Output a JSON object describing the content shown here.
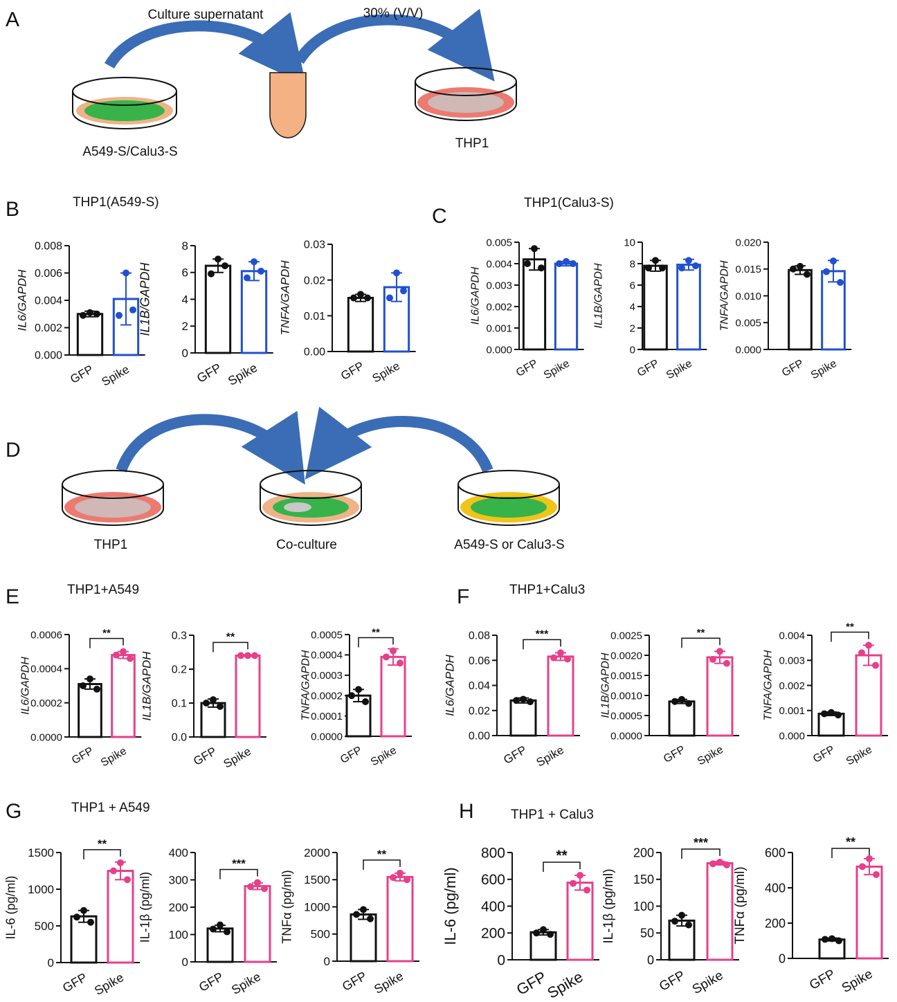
{
  "diagram_a": {
    "label": "A",
    "labels": [
      "Culture supernatant",
      "30% (V/V)",
      "A549-S/Calu3-S",
      "THP1"
    ]
  },
  "diagram_d": {
    "label": "D",
    "labels": [
      "THP1",
      "Co-culture",
      "A549-S or Calu3-S"
    ]
  },
  "panels": [
    {
      "label": "B",
      "title": "THP1(A549-S)"
    },
    {
      "label": "C",
      "title": "THP1(Calu3-S)"
    },
    {
      "label": "E",
      "title": "THP1+A549"
    },
    {
      "label": "F",
      "title": "THP1+Calu3"
    },
    {
      "label": "G",
      "title": "THP1 + A549"
    },
    {
      "label": "H",
      "title": "THP1 + Calu3"
    }
  ],
  "chart_data": [
    {
      "type": "bar",
      "ylabel": "IL6/GAPDH",
      "ylabel_style": "italic",
      "categories": [
        "GFP",
        "Spike"
      ],
      "colors": [
        "#111111",
        "#2050d0"
      ],
      "values": [
        0.003,
        0.0041
      ],
      "errors": [
        0.0002,
        0.0019
      ],
      "points": [
        [
          0.0029,
          0.0031,
          0.003
        ],
        [
          0.0029,
          0.006,
          0.0033
        ]
      ],
      "ylim": [
        0,
        0.008
      ],
      "yticks": [
        {
          "value": 0,
          "label": "0.000"
        },
        0.002,
        0.004,
        0.006,
        0.008
      ]
    },
    {
      "type": "bar",
      "ylabel": "IL1B/GAPDH",
      "ylabel_style": "italic",
      "categories": [
        "GFP",
        "Spike"
      ],
      "colors": [
        "#111111",
        "#2050d0"
      ],
      "values": [
        6.5,
        6.1
      ],
      "errors": [
        0.5,
        0.7
      ],
      "points": [
        [
          5.9,
          7.0,
          6.5
        ],
        [
          5.6,
          6.8,
          6.1
        ]
      ],
      "ylim": [
        0,
        8
      ],
      "yticks": [
        0,
        2,
        4,
        6,
        8
      ]
    },
    {
      "type": "bar",
      "ylabel": "TNFA/GAPDH",
      "ylabel_style": "italic",
      "categories": [
        "GFP",
        "Spike"
      ],
      "colors": [
        "#111111",
        "#2050d0"
      ],
      "values": [
        0.015,
        0.018
      ],
      "errors": [
        0.001,
        0.004
      ],
      "points": [
        [
          0.015,
          0.016,
          0.015
        ],
        [
          0.015,
          0.022,
          0.017
        ]
      ],
      "ylim": [
        0,
        0.03
      ],
      "yticks": [
        {
          "value": 0,
          "label": "0.00"
        },
        0.01,
        0.02,
        0.03
      ]
    },
    {
      "type": "bar",
      "ylabel": "IL6/GAPDH",
      "ylabel_style": "italic",
      "categories": [
        "GFP",
        "Spike"
      ],
      "colors": [
        "#111111",
        "#2050d0"
      ],
      "values": [
        0.0042,
        0.004
      ],
      "errors": [
        0.0005,
        0.0001
      ],
      "points": [
        [
          0.004,
          0.0047,
          0.0038
        ],
        [
          0.004,
          0.0041,
          0.004
        ]
      ],
      "ylim": [
        0,
        0.005
      ],
      "yticks": [
        {
          "value": 0,
          "label": "0.000"
        },
        0.001,
        0.002,
        0.003,
        0.004,
        0.005
      ]
    },
    {
      "type": "bar",
      "ylabel": "IL1B/GAPDH",
      "ylabel_style": "italic",
      "categories": [
        "GFP",
        "Spike"
      ],
      "colors": [
        "#111111",
        "#2050d0"
      ],
      "values": [
        7.8,
        7.9
      ],
      "errors": [
        0.5,
        0.5
      ],
      "points": [
        [
          7.6,
          8.3,
          7.6
        ],
        [
          7.6,
          8.3,
          7.8
        ]
      ],
      "ylim": [
        0,
        10
      ],
      "yticks": [
        0,
        2,
        4,
        6,
        8,
        10
      ]
    },
    {
      "type": "bar",
      "ylabel": "TNFA/GAPDH",
      "ylabel_style": "italic",
      "categories": [
        "GFP",
        "Spike"
      ],
      "colors": [
        "#111111",
        "#2050d0"
      ],
      "values": [
        0.0148,
        0.0146
      ],
      "errors": [
        0.0008,
        0.002
      ],
      "points": [
        [
          0.015,
          0.0155,
          0.014
        ],
        [
          0.0145,
          0.0165,
          0.0125
        ]
      ],
      "ylim": [
        0,
        0.02
      ],
      "yticks": [
        {
          "value": 0,
          "label": "0.000"
        },
        0.005,
        {
          "value": 0.01,
          "label": "0.010"
        },
        0.015,
        {
          "value": 0.02,
          "label": "0.020"
        }
      ]
    },
    {
      "type": "bar",
      "ylabel": "IL6/GAPDH",
      "ylabel_style": "italic",
      "categories": [
        "GFP",
        "Spike"
      ],
      "colors": [
        "#111111",
        "#e6408a"
      ],
      "values": [
        0.00031,
        0.00048
      ],
      "errors": [
        3e-05,
        2e-05
      ],
      "points": [
        [
          0.0003,
          0.00034,
          0.00028
        ],
        [
          0.00048,
          0.0005,
          0.00046
        ]
      ],
      "ylim": [
        0,
        0.0006
      ],
      "yticks": [
        {
          "value": 0,
          "label": "0.0000"
        },
        0.0002,
        0.0004,
        0.0006
      ],
      "significance": "**"
    },
    {
      "type": "bar",
      "ylabel": "IL1B/GAPDH",
      "ylabel_style": "italic",
      "categories": [
        "GFP",
        "Spike"
      ],
      "colors": [
        "#111111",
        "#e6408a"
      ],
      "values": [
        0.1,
        0.24
      ],
      "errors": [
        0.012,
        0.002
      ],
      "points": [
        [
          0.1,
          0.11,
          0.09
        ],
        [
          0.24,
          0.24,
          0.24
        ]
      ],
      "ylim": [
        0,
        0.3
      ],
      "yticks": [
        {
          "value": 0,
          "label": "0.0"
        },
        0.1,
        0.2,
        0.3
      ],
      "significance": "**"
    },
    {
      "type": "bar",
      "ylabel": "TNFA/GAPDH",
      "ylabel_style": "italic",
      "categories": [
        "GFP",
        "Spike"
      ],
      "colors": [
        "#111111",
        "#e6408a"
      ],
      "values": [
        0.0002,
        0.00039
      ],
      "errors": [
        3e-05,
        4e-05
      ],
      "points": [
        [
          0.0002,
          0.00023,
          0.00017
        ],
        [
          0.00039,
          0.00042,
          0.00036
        ]
      ],
      "ylim": [
        0,
        0.0005
      ],
      "yticks": [
        {
          "value": 0,
          "label": "0.0000"
        },
        0.0001,
        0.0002,
        0.0003,
        0.0004,
        0.0005
      ],
      "significance": "**"
    },
    {
      "type": "bar",
      "ylabel": "IL6/GAPDH",
      "ylabel_style": "italic",
      "categories": [
        "GFP",
        "Spike"
      ],
      "colors": [
        "#111111",
        "#e6408a"
      ],
      "values": [
        0.028,
        0.063
      ],
      "errors": [
        0.002,
        0.003
      ],
      "points": [
        [
          0.028,
          0.029,
          0.027
        ],
        [
          0.062,
          0.066,
          0.061
        ]
      ],
      "ylim": [
        0,
        0.08
      ],
      "yticks": [
        {
          "value": 0,
          "label": "0.00"
        },
        0.02,
        0.04,
        0.06,
        0.08
      ],
      "significance": "***"
    },
    {
      "type": "bar",
      "ylabel": "IL1B/GAPDH",
      "ylabel_style": "italic",
      "categories": [
        "GFP",
        "Spike"
      ],
      "colors": [
        "#111111",
        "#e6408a"
      ],
      "values": [
        0.00085,
        0.00195
      ],
      "errors": [
        5e-05,
        0.00015
      ],
      "points": [
        [
          0.00085,
          0.0009,
          0.0008
        ],
        [
          0.0019,
          0.0021,
          0.0018
        ]
      ],
      "ylim": [
        0,
        0.0025
      ],
      "yticks": [
        {
          "value": 0,
          "label": "0.0000"
        },
        0.0005,
        {
          "value": 0.001,
          "label": "0.0010"
        },
        0.0015,
        {
          "value": 0.002,
          "label": "0.0020"
        },
        0.0025
      ],
      "significance": "**"
    },
    {
      "type": "bar",
      "ylabel": "TNFA/GAPDH",
      "ylabel_style": "italic",
      "categories": [
        "GFP",
        "Spike"
      ],
      "colors": [
        "#111111",
        "#e6408a"
      ],
      "values": [
        0.00087,
        0.0032
      ],
      "errors": [
        7e-05,
        0.0004
      ],
      "points": [
        [
          0.00087,
          0.00092,
          0.00082
        ],
        [
          0.0033,
          0.0036,
          0.0028
        ]
      ],
      "ylim": [
        0,
        0.004
      ],
      "yticks": [
        {
          "value": 0,
          "label": "0.000"
        },
        0.001,
        0.002,
        0.003,
        0.004
      ],
      "significance": "**"
    },
    {
      "type": "bar",
      "ylabel": "IL-6 (pg/ml)",
      "ylabel_style": "normal",
      "categories": [
        "GFP",
        "Spike"
      ],
      "colors": [
        "#111111",
        "#e6408a"
      ],
      "values": [
        630,
        1250
      ],
      "errors": [
        80,
        120
      ],
      "points": [
        [
          620,
          710,
          550
        ],
        [
          1250,
          1360,
          1130
        ]
      ],
      "ylim": [
        0,
        1500
      ],
      "yticks": [
        0,
        500,
        1000,
        1500
      ],
      "significance": "**"
    },
    {
      "type": "bar",
      "ylabel": "IL-1β (pg/ml)",
      "ylabel_style": "normal",
      "categories": [
        "GFP",
        "Spike"
      ],
      "colors": [
        "#111111",
        "#e6408a"
      ],
      "values": [
        122,
        277
      ],
      "errors": [
        12,
        12
      ],
      "points": [
        [
          120,
          135,
          110
        ],
        [
          275,
          290,
          268
        ]
      ],
      "ylim": [
        0,
        400
      ],
      "yticks": [
        0,
        100,
        200,
        300,
        400
      ],
      "significance": "***"
    },
    {
      "type": "bar",
      "ylabel": "TNFα (pg/ml)",
      "ylabel_style": "normal",
      "categories": [
        "GFP",
        "Spike"
      ],
      "colors": [
        "#111111",
        "#e6408a"
      ],
      "values": [
        860,
        1550
      ],
      "errors": [
        90,
        70
      ],
      "points": [
        [
          860,
          950,
          780
        ],
        [
          1540,
          1620,
          1500
        ]
      ],
      "ylim": [
        0,
        2000
      ],
      "yticks": [
        0,
        500,
        1000,
        1500,
        2000
      ],
      "significance": "**"
    },
    {
      "type": "bar",
      "ylabel": "IL-6 (pg/ml)",
      "ylabel_style": "normal",
      "categories": [
        "GFP",
        "Spike"
      ],
      "colors": [
        "#111111",
        "#e6408a"
      ],
      "values": [
        205,
        575
      ],
      "errors": [
        20,
        55
      ],
      "points": [
        [
          200,
          225,
          190
        ],
        [
          570,
          630,
          520
        ]
      ],
      "ylim": [
        0,
        800
      ],
      "yticks": [
        0,
        200,
        400,
        600,
        800
      ],
      "significance": "**"
    },
    {
      "type": "bar",
      "ylabel": "IL-1β (pg/ml)",
      "ylabel_style": "normal",
      "categories": [
        "GFP",
        "Spike"
      ],
      "colors": [
        "#111111",
        "#e6408a"
      ],
      "values": [
        73,
        180
      ],
      "errors": [
        10,
        3
      ],
      "points": [
        [
          72,
          83,
          65
        ],
        [
          179,
          182,
          177
        ]
      ],
      "ylim": [
        0,
        200
      ],
      "yticks": [
        0,
        50,
        100,
        150,
        200
      ],
      "significance": "***"
    },
    {
      "type": "bar",
      "ylabel": "TNFα (pg/ml)",
      "ylabel_style": "normal",
      "categories": [
        "GFP",
        "Spike"
      ],
      "colors": [
        "#111111",
        "#e6408a"
      ],
      "values": [
        107,
        520
      ],
      "errors": [
        8,
        45
      ],
      "points": [
        [
          108,
          112,
          100
        ],
        [
          520,
          565,
          475
        ]
      ],
      "ylim": [
        0,
        600
      ],
      "yticks": [
        0,
        200,
        400,
        600
      ],
      "significance": "**"
    }
  ]
}
